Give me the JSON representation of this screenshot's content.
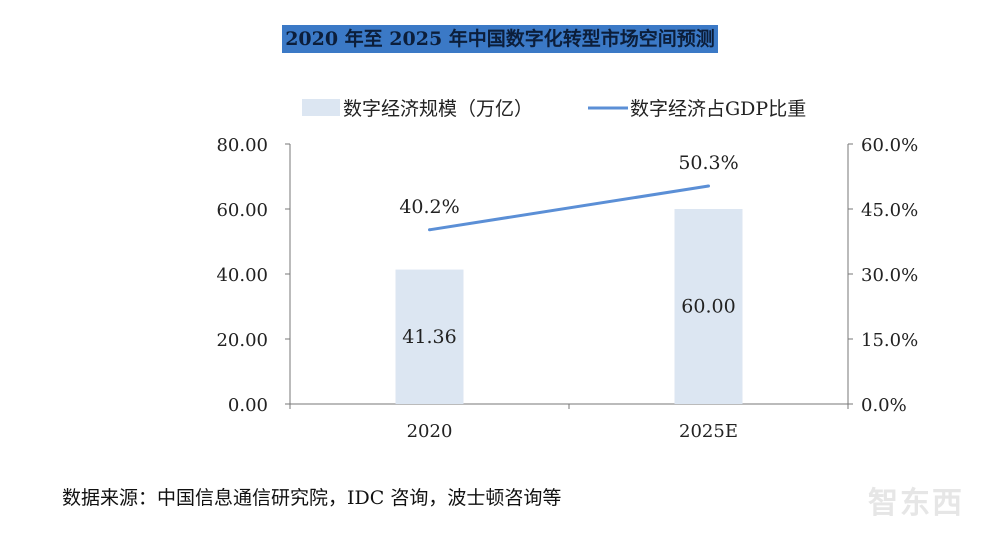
{
  "chart_data": {
    "type": "bar+line",
    "title": "2020 年至 2025 年中国数字化转型市场空间预测",
    "categories": [
      "2020",
      "2025E"
    ],
    "series": [
      {
        "name": "数字经济规模（万亿）",
        "type": "bar",
        "axis": "left",
        "values": [
          41.36,
          60.0
        ],
        "labels": [
          "41.36",
          "60.00"
        ],
        "color": "#dce6f2"
      },
      {
        "name": "数字经济占GDP比重",
        "type": "line",
        "axis": "right",
        "values": [
          40.2,
          50.3
        ],
        "labels": [
          "40.2%",
          "50.3%"
        ],
        "color": "#5b8fd6"
      }
    ],
    "y_left": {
      "min": 0,
      "max": 80,
      "ticks": [
        "0.00",
        "20.00",
        "40.00",
        "60.00",
        "80.00"
      ]
    },
    "y_right": {
      "min": 0,
      "max": 60,
      "ticks": [
        "0.0%",
        "15.0%",
        "30.0%",
        "45.0%",
        "60.0%"
      ]
    },
    "legend_position": "top",
    "grid": false
  },
  "source_note": "数据来源：中国信息通信研究院，IDC 咨询，波士顿咨询等",
  "watermark": "智东西"
}
